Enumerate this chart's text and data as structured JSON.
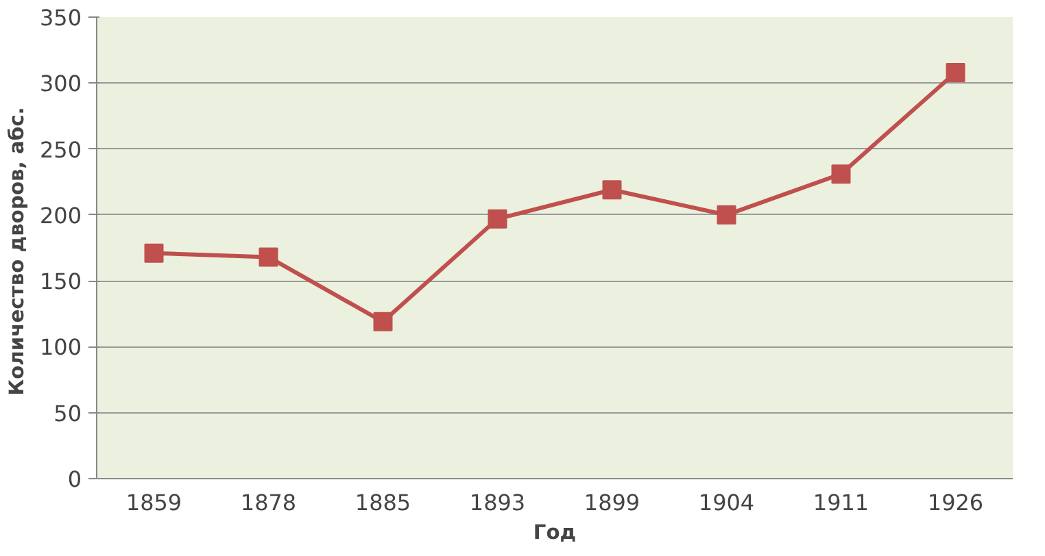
{
  "chart_data": {
    "type": "line",
    "xlabel": "Год",
    "ylabel": "Количество дворов,  абс.",
    "categories": [
      "1859",
      "1878",
      "1885",
      "1893",
      "1899",
      "1904",
      "1911",
      "1926"
    ],
    "series": [
      {
        "color": "#c0504d",
        "values": [
          171,
          168,
          119,
          197,
          219,
          200,
          231,
          308
        ]
      }
    ],
    "ylim": [
      0,
      350
    ],
    "yticks": [
      0,
      50,
      100,
      150,
      200,
      250,
      300,
      350
    ],
    "grid": "y",
    "marker": "square",
    "line_style": "solid"
  }
}
